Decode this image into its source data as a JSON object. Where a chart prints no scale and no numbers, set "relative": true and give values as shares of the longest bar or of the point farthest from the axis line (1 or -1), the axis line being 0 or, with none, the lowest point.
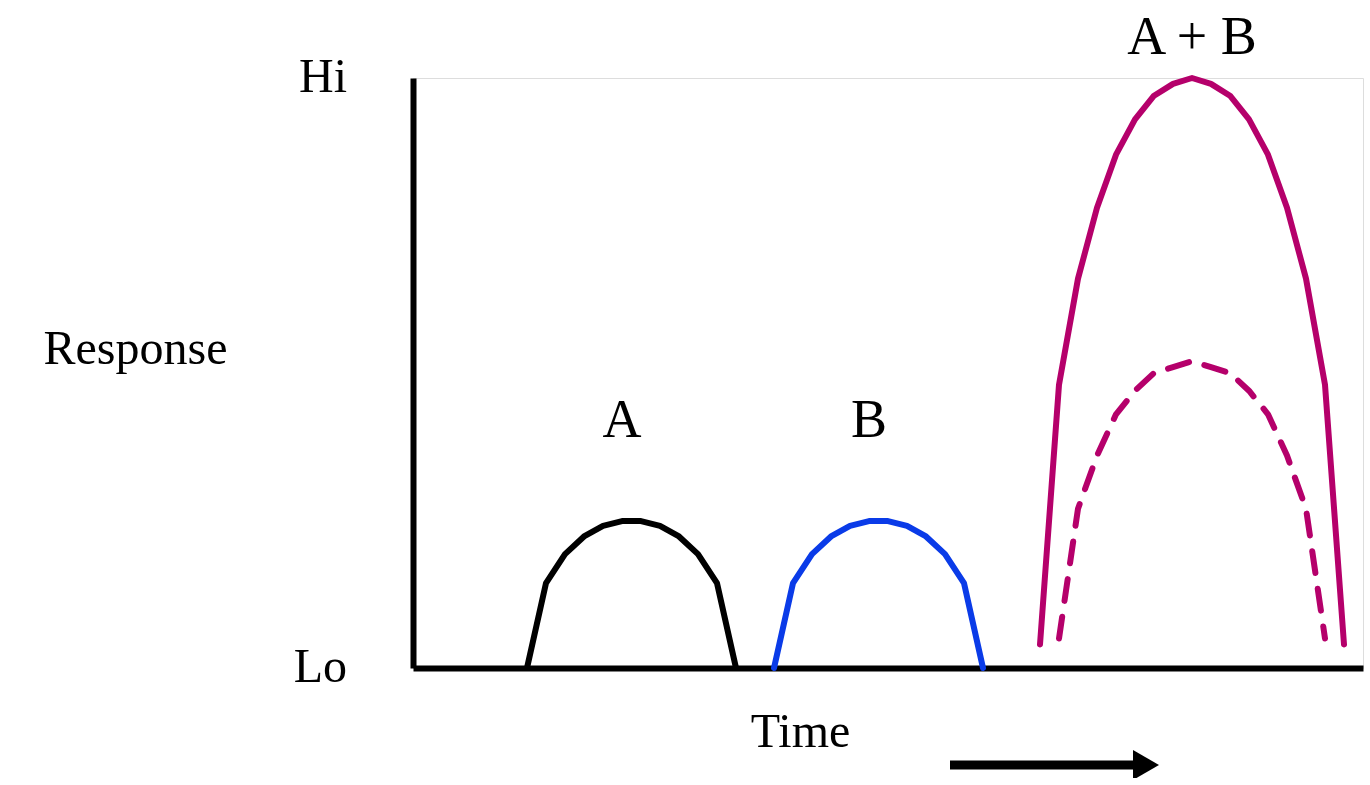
{
  "chart_data": {
    "type": "line",
    "xlabel": "Time",
    "ylabel": "Response",
    "categories": [
      null,
      null,
      null,
      null,
      null,
      null,
      null,
      null,
      null,
      null,
      null,
      null,
      null,
      null,
      null,
      null,
      null,
      null,
      null,
      null,
      null,
      null,
      null,
      null,
      null,
      null,
      null,
      null,
      null,
      null,
      null,
      null,
      null,
      null,
      null,
      null,
      null,
      null,
      null,
      null,
      null,
      null,
      null,
      null,
      null,
      null,
      null,
      null,
      null,
      null,
      null
    ],
    "relative": true,
    "annotations": [
      "Hi",
      "Lo"
    ],
    "tick_labels": false,
    "series": [
      {
        "name": "A",
        "color": "#000000",
        "line_style": "solid",
        "values": [
          null,
          null,
          null,
          null,
          null,
          null,
          0,
          0.144,
          0.193,
          0.223,
          0.241,
          0.249,
          0.249,
          0.241,
          0.223,
          0.193,
          0.144,
          0,
          null,
          null,
          null,
          null,
          null,
          null,
          null,
          null,
          null,
          null,
          null,
          null,
          null,
          null,
          null,
          null,
          null,
          null,
          null,
          null,
          null,
          null,
          null,
          null,
          null,
          null,
          null,
          null,
          null,
          null,
          null,
          null,
          null
        ]
      },
      {
        "name": "B",
        "color": "#0a3be8",
        "line_style": "solid",
        "values": [
          null,
          null,
          null,
          null,
          null,
          null,
          null,
          null,
          null,
          null,
          null,
          null,
          null,
          null,
          null,
          null,
          null,
          null,
          null,
          0,
          0.144,
          0.193,
          0.223,
          0.241,
          0.249,
          0.249,
          0.241,
          0.223,
          0.193,
          0.144,
          0,
          null,
          null,
          null,
          null,
          null,
          null,
          null,
          null,
          null,
          null,
          null,
          null,
          null,
          null,
          null,
          null,
          null,
          null,
          null,
          null
        ]
      },
      {
        "name": "A + B",
        "color": "#b5006b",
        "line_style": "solid",
        "values": [
          null,
          null,
          null,
          null,
          null,
          null,
          null,
          null,
          null,
          null,
          null,
          null,
          null,
          null,
          null,
          null,
          null,
          null,
          null,
          null,
          null,
          null,
          null,
          null,
          null,
          null,
          null,
          null,
          null,
          null,
          null,
          null,
          null,
          0.04,
          0.48,
          0.66,
          0.78,
          0.87,
          0.93,
          0.97,
          0.99,
          1,
          0.99,
          0.97,
          0.93,
          0.87,
          0.78,
          0.66,
          0.48,
          0.04,
          null
        ]
      },
      {
        "color": "#b5006b",
        "line_style": "dashed",
        "values": [
          null,
          null,
          null,
          null,
          null,
          null,
          null,
          null,
          null,
          null,
          null,
          null,
          null,
          null,
          null,
          null,
          null,
          null,
          null,
          null,
          null,
          null,
          null,
          null,
          null,
          null,
          null,
          null,
          null,
          null,
          null,
          null,
          null,
          null,
          0.05,
          0.27,
          0.36,
          0.43,
          0.47,
          0.5,
          0.51,
          0.52,
          0.51,
          0.5,
          0.47,
          0.43,
          0.36,
          0.27,
          0.05,
          null,
          null
        ]
      }
    ]
  }
}
